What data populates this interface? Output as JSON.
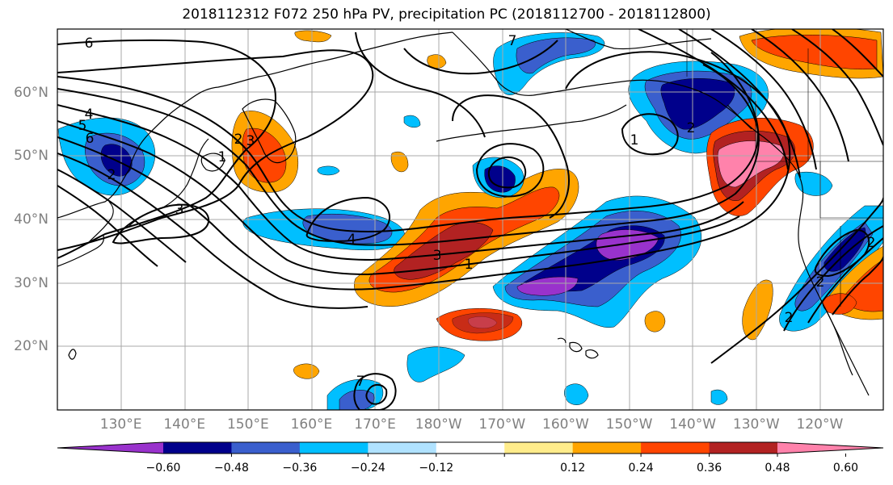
{
  "title": "2018112312 F072 250 hPa PV, precipitation PC (2018112700 - 2018112800)",
  "latitude_labels": [
    {
      "text": "60°N",
      "lat": 60
    },
    {
      "text": "50°N",
      "lat": 50
    },
    {
      "text": "40°N",
      "lat": 40
    },
    {
      "text": "30°N",
      "lat": 30
    },
    {
      "text": "20°N",
      "lat": 20
    }
  ],
  "longitude_labels": [
    {
      "text": "130°E",
      "lon": 130
    },
    {
      "text": "140°E",
      "lon": 140
    },
    {
      "text": "150°E",
      "lon": 150
    },
    {
      "text": "160°E",
      "lon": 160
    },
    {
      "text": "170°E",
      "lon": 170
    },
    {
      "text": "180°W",
      "lon": 180
    },
    {
      "text": "170°W",
      "lon": 190
    },
    {
      "text": "160°W",
      "lon": 200
    },
    {
      "text": "150°W",
      "lon": 210
    },
    {
      "text": "140°W",
      "lon": 220
    },
    {
      "text": "130°W",
      "lon": 230
    },
    {
      "text": "120°W",
      "lon": 240
    }
  ],
  "extent": {
    "lon_min": 120,
    "lon_max": 250,
    "lat_min": 10,
    "lat_max": 70
  },
  "colorbar": {
    "colors": [
      "#9932cc",
      "#00008b",
      "#3a5fcd",
      "#00bfff",
      "#b0e2ff",
      "#ffffff",
      "#ffec8b",
      "#ffa500",
      "#ff4500",
      "#b22222",
      "#ff82ab"
    ],
    "ticks": [
      "−0.60",
      "−0.48",
      "−0.36",
      "−0.24",
      "−0.12",
      "0.12",
      "0.24",
      "0.36",
      "0.48",
      "0.60"
    ]
  },
  "contour_labels": [
    "6",
    "4",
    "5",
    "6",
    "2",
    "1",
    "3",
    "3",
    "2",
    "4",
    "3",
    "1",
    "1",
    "2",
    "2",
    "2",
    "7",
    "7",
    "2"
  ],
  "colors": {
    "land_border": "#000000",
    "grid": "#a9a9a9",
    "pv_contour": "#000000"
  }
}
